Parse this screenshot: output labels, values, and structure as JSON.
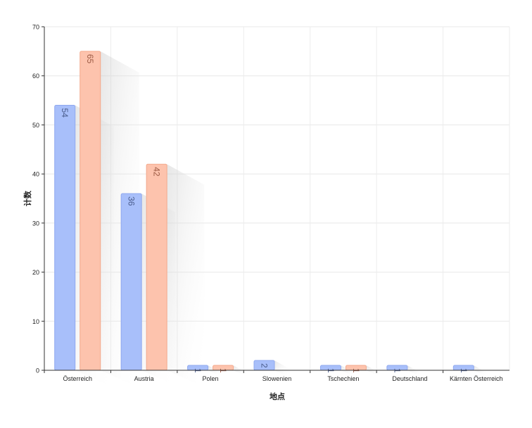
{
  "chart_data": {
    "type": "bar",
    "title": "",
    "xlabel": "地点",
    "ylabel": "计数",
    "ylim": [
      0,
      70
    ],
    "yticks": [
      0,
      10,
      20,
      30,
      40,
      50,
      60,
      70
    ],
    "grid": true,
    "legend": "none",
    "categories": [
      "Österreich",
      "Austria",
      "Polen",
      "Slowenien",
      "Tschechien",
      "Deutschland",
      "Kärnten Österreich"
    ],
    "series": [
      {
        "values": [
          54,
          36,
          1,
          2,
          1,
          1,
          1
        ],
        "color": "#a8bffa",
        "stroke": "#8fa8ef",
        "label_color": "#4a5c8c"
      },
      {
        "values": [
          65,
          42,
          1,
          null,
          1,
          null,
          null
        ],
        "color": "#fdc3ad",
        "stroke": "#f3a98c",
        "label_color": "#9c5a44"
      }
    ]
  }
}
